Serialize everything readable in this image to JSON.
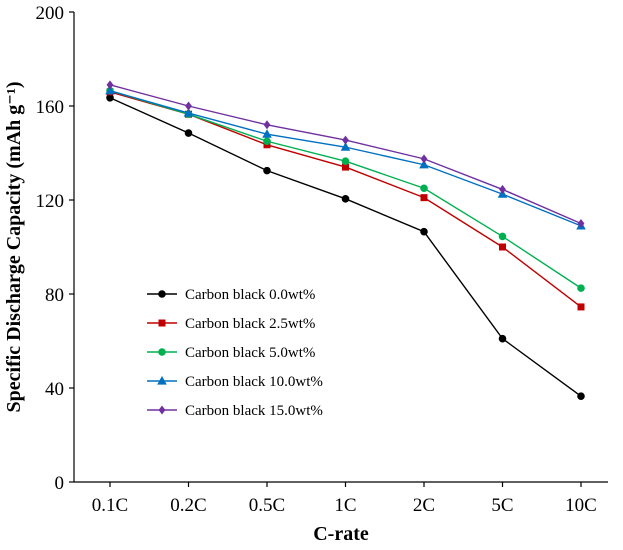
{
  "chart_data": {
    "type": "line",
    "title": "",
    "xlabel": "C-rate",
    "ylabel": "Specific Discharge Capacity (mAh g⁻¹)",
    "categories": [
      "0.1C",
      "0.2C",
      "0.5C",
      "1C",
      "2C",
      "5C",
      "10C"
    ],
    "ylim": [
      0,
      200
    ],
    "yticks": [
      "0",
      "40",
      "80",
      "120",
      "160",
      "200"
    ],
    "grid": false,
    "legend_position": "lower-left",
    "series": [
      {
        "name": "Carbon black 0.0wt%",
        "color": "#000000",
        "marker": "circle",
        "values": [
          163.5,
          148.5,
          132.5,
          120.5,
          106.5,
          61,
          36.5
        ]
      },
      {
        "name": "Carbon black 2.5wt%",
        "color": "#c00000",
        "marker": "square",
        "values": [
          166,
          156.5,
          143.5,
          134,
          121,
          100,
          74.5
        ]
      },
      {
        "name": "Carbon black 5.0wt%",
        "color": "#00b050",
        "marker": "circle",
        "values": [
          166.5,
          156.5,
          145,
          136.5,
          125,
          104.5,
          82.5
        ]
      },
      {
        "name": "Carbon black 10.0wt%",
        "color": "#0070c0",
        "marker": "triangle",
        "values": [
          166.5,
          157,
          148,
          142.5,
          135,
          122.5,
          109
        ]
      },
      {
        "name": "Carbon black 15.0wt%",
        "color": "#7030a0",
        "marker": "diamond",
        "values": [
          169,
          160,
          152,
          145.5,
          137.5,
          124.5,
          110
        ]
      }
    ]
  }
}
